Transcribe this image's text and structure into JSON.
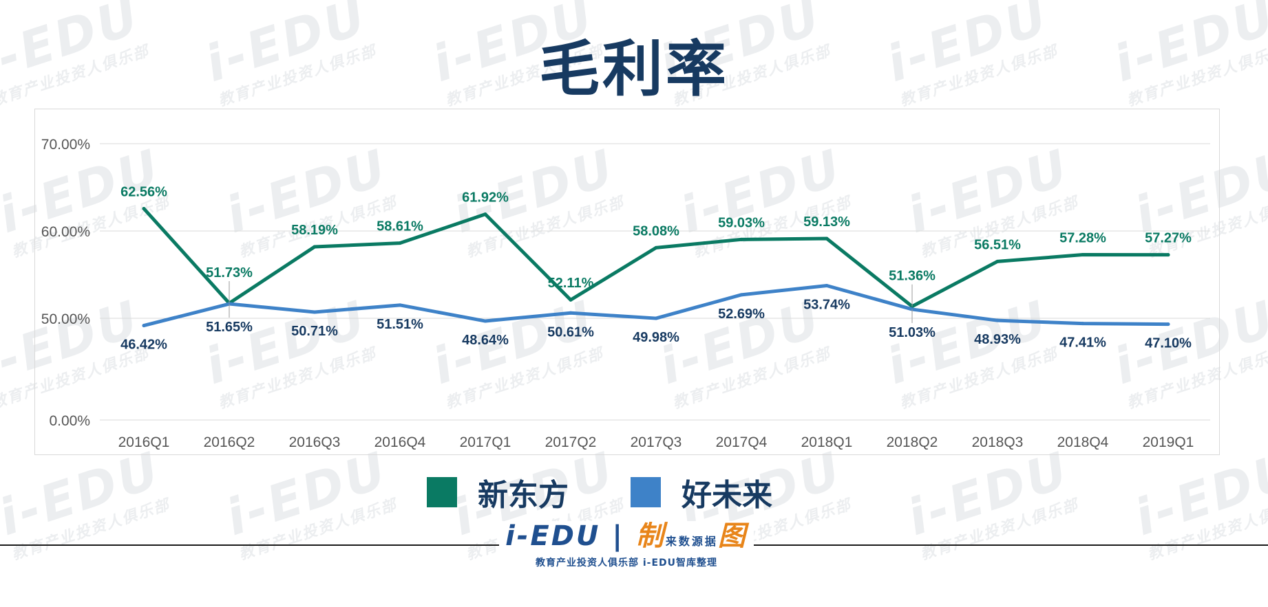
{
  "title": "毛利率",
  "watermark": {
    "brand": "i-EDU",
    "subtitle": "教育产业投资人俱乐部"
  },
  "footer_logo": {
    "brand": "i-EDU",
    "made": "制",
    "source_label": "来数源据",
    "chart_word": "图",
    "subtitle": "教育产业投资人俱乐部",
    "subtitle2": "i-EDU智库整理"
  },
  "colors": {
    "series1": "#0a7a63",
    "series2": "#3e82c8",
    "title": "#173a61",
    "axis_text": "#555555",
    "grid": "#d9d9d9"
  },
  "legend": [
    {
      "label": "新东方",
      "color": "#0a7a63"
    },
    {
      "label": "好未来",
      "color": "#3e82c8"
    }
  ],
  "chart_data": {
    "type": "line",
    "categories": [
      "2016Q1",
      "2016Q2",
      "2016Q3",
      "2016Q4",
      "2017Q1",
      "2017Q2",
      "2017Q3",
      "2017Q4",
      "2018Q1",
      "2018Q2",
      "2018Q3",
      "2018Q4",
      "2019Q1"
    ],
    "series": [
      {
        "name": "新东方",
        "values": [
          62.56,
          51.73,
          58.19,
          58.61,
          61.92,
          52.11,
          58.08,
          59.03,
          59.13,
          51.36,
          56.51,
          57.28,
          57.27
        ],
        "labels": [
          "62.56%",
          "51.73%",
          "58.19%",
          "58.61%",
          "61.92%",
          "52.11%",
          "58.08%",
          "59.03%",
          "59.13%",
          "51.36%",
          "56.51%",
          "57.28%",
          "57.27%"
        ]
      },
      {
        "name": "好未来",
        "values": [
          46.42,
          51.65,
          50.71,
          51.51,
          48.64,
          50.61,
          49.98,
          52.69,
          53.74,
          51.03,
          48.93,
          47.41,
          47.1
        ],
        "labels": [
          "46.42%",
          "51.65%",
          "50.71%",
          "51.51%",
          "48.64%",
          "50.61%",
          "49.98%",
          "52.69%",
          "53.74%",
          "51.03%",
          "48.93%",
          "47.41%",
          "47.10%"
        ]
      }
    ],
    "y_ticks": [
      0,
      50,
      60,
      70
    ],
    "y_tick_labels": [
      "0.00%",
      "50.00%",
      "60.00%",
      "70.00%"
    ],
    "ylim": [
      0,
      70
    ],
    "y_axis_break": "0%–50% compressed",
    "grid": true,
    "legend_position": "bottom"
  }
}
